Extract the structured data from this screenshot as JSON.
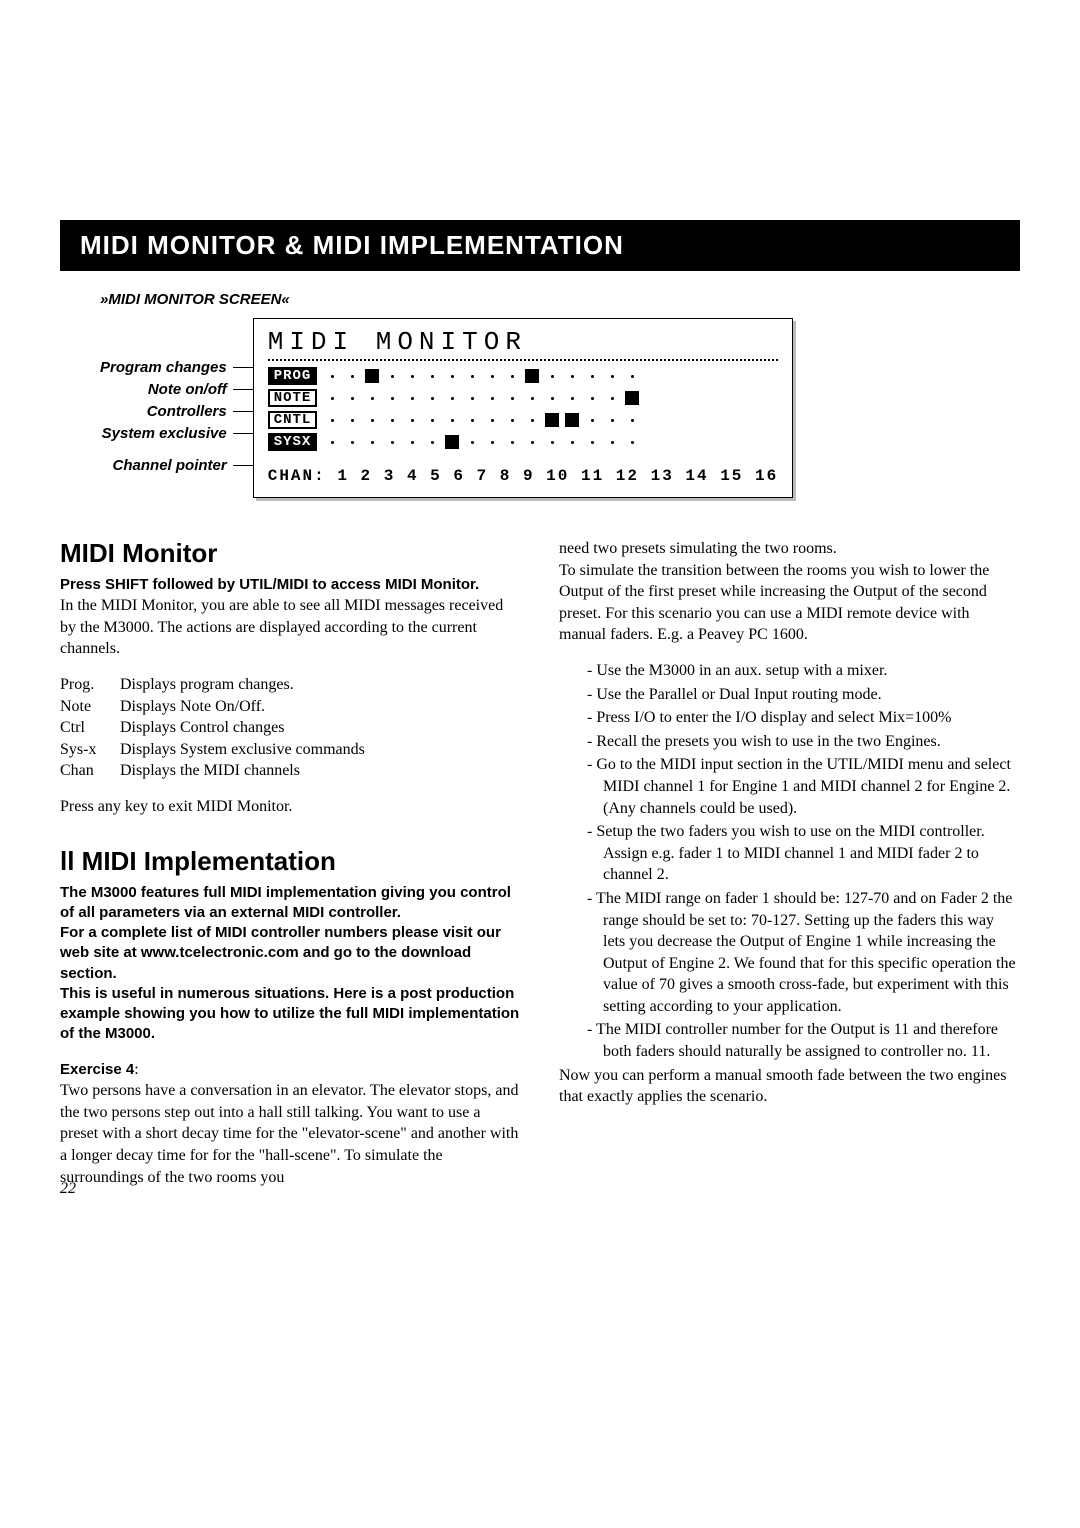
{
  "banner": "MIDI MONITOR  &  MIDI IMPLEMENTATION",
  "screen_label": "»MIDI MONITOR SCREEN«",
  "diagram": {
    "title": "MIDI MONITOR",
    "side_labels": [
      "Program changes",
      "Note on/off",
      "Controllers",
      "System exclusive",
      "Channel pointer"
    ],
    "rows": [
      {
        "tag": "PROG",
        "inverted": true,
        "cells": [
          "dot",
          "dot",
          "sq",
          "dot",
          "dot",
          "dot",
          "dot",
          "dot",
          "dot",
          "dot",
          "sq",
          "dot",
          "dot",
          "dot",
          "dot",
          "dot"
        ]
      },
      {
        "tag": "NOTE",
        "inverted": false,
        "cells": [
          "dot",
          "dot",
          "dot",
          "dot",
          "dot",
          "dot",
          "dot",
          "dot",
          "dot",
          "dot",
          "dot",
          "dot",
          "dot",
          "dot",
          "dot",
          "sq"
        ]
      },
      {
        "tag": "CNTL",
        "inverted": false,
        "cells": [
          "dot",
          "dot",
          "dot",
          "dot",
          "dot",
          "dot",
          "dot",
          "dot",
          "dot",
          "dot",
          "dot",
          "sq",
          "sq",
          "dot",
          "dot",
          "dot"
        ]
      },
      {
        "tag": "SYSX",
        "inverted": true,
        "cells": [
          "dot",
          "dot",
          "dot",
          "dot",
          "dot",
          "dot",
          "sq",
          "dot",
          "dot",
          "dot",
          "dot",
          "dot",
          "dot",
          "dot",
          "dot",
          "dot"
        ]
      }
    ],
    "chan_label": "CHAN:",
    "chan_values": "1 2 3 4 5 6 7 8 9 10 11 12 13 14 15 16"
  },
  "left": {
    "h_monitor": "MIDI Monitor",
    "press_shift": "Press SHIFT followed by UTIL/MIDI to access MIDI Monitor.",
    "monitor_intro": "In the MIDI Monitor, you are able to see all MIDI messages received by the M3000. The actions are displayed according to the current channels.",
    "defs": [
      {
        "t": "Prog.",
        "d": "Displays program changes."
      },
      {
        "t": "Note",
        "d": "Displays Note On/Off."
      },
      {
        "t": "Ctrl",
        "d": "Displays Control changes"
      },
      {
        "t": "Sys-x",
        "d": "Displays System exclusive commands"
      },
      {
        "t": "Chan",
        "d": "Displays the MIDI channels"
      }
    ],
    "press_any": "Press any key to exit MIDI Monitor.",
    "h_impl": "ll MIDI Implementation",
    "impl_p1": "The M3000 features full MIDI implementation giving you control of all parameters via an external MIDI controller.",
    "impl_p2": "For a complete list of MIDI controller numbers please visit our web site at www.tcelectronic.com and go to the download section.",
    "impl_p3": "This is useful in numerous situations. Here is a post production example showing you how to utilize the full MIDI implementation of the M3000.",
    "ex_title": "Exercise 4",
    "ex_body": "Two persons have a conversation in an elevator. The elevator stops, and the two persons step out into a hall still talking. You want to use a preset with a short decay time for the \"elevator-scene\" and another with a longer decay time for for the \"hall-scene\". To simulate the surroundings of the two rooms you"
  },
  "right": {
    "cont1": "need two presets simulating the two rooms.",
    "cont2": "To simulate the transition between the rooms you wish to lower the Output of the first preset while increasing the Output of the second preset. For this scenario you can use a MIDI remote device with manual faders. E.g. a Peavey PC 1600.",
    "bullets": [
      "Use the M3000 in an aux. setup with a mixer.",
      "Use the Parallel or Dual Input routing mode.",
      "Press I/O to enter the I/O display and select Mix=100%",
      "Recall the presets you wish to use in the two Engines.",
      "Go to the MIDI input section in the UTIL/MIDI menu and select  MIDI channel 1 for Engine 1 and  MIDI channel 2 for Engine 2. (Any channels could be used).",
      "Setup the two faders you wish to use on the MIDI controller. Assign e.g. fader 1 to MIDI channel 1 and MIDI fader 2 to channel 2.",
      "The MIDI range on fader 1 should be: 127-70 and on Fader 2 the range should be set to: 70-127. Setting up the faders this way lets you decrease the Output of Engine 1 while increasing the Output of Engine 2. We found that for this specific operation the value of 70 gives a smooth cross-fade, but experiment with this setting according to your application.",
      "The MIDI controller number for the Output is 11 and therefore both faders should naturally be assigned to controller no. 11."
    ],
    "closing": "Now you can perform a manual smooth fade between the two engines that exactly applies the scenario."
  },
  "page_number": "22"
}
